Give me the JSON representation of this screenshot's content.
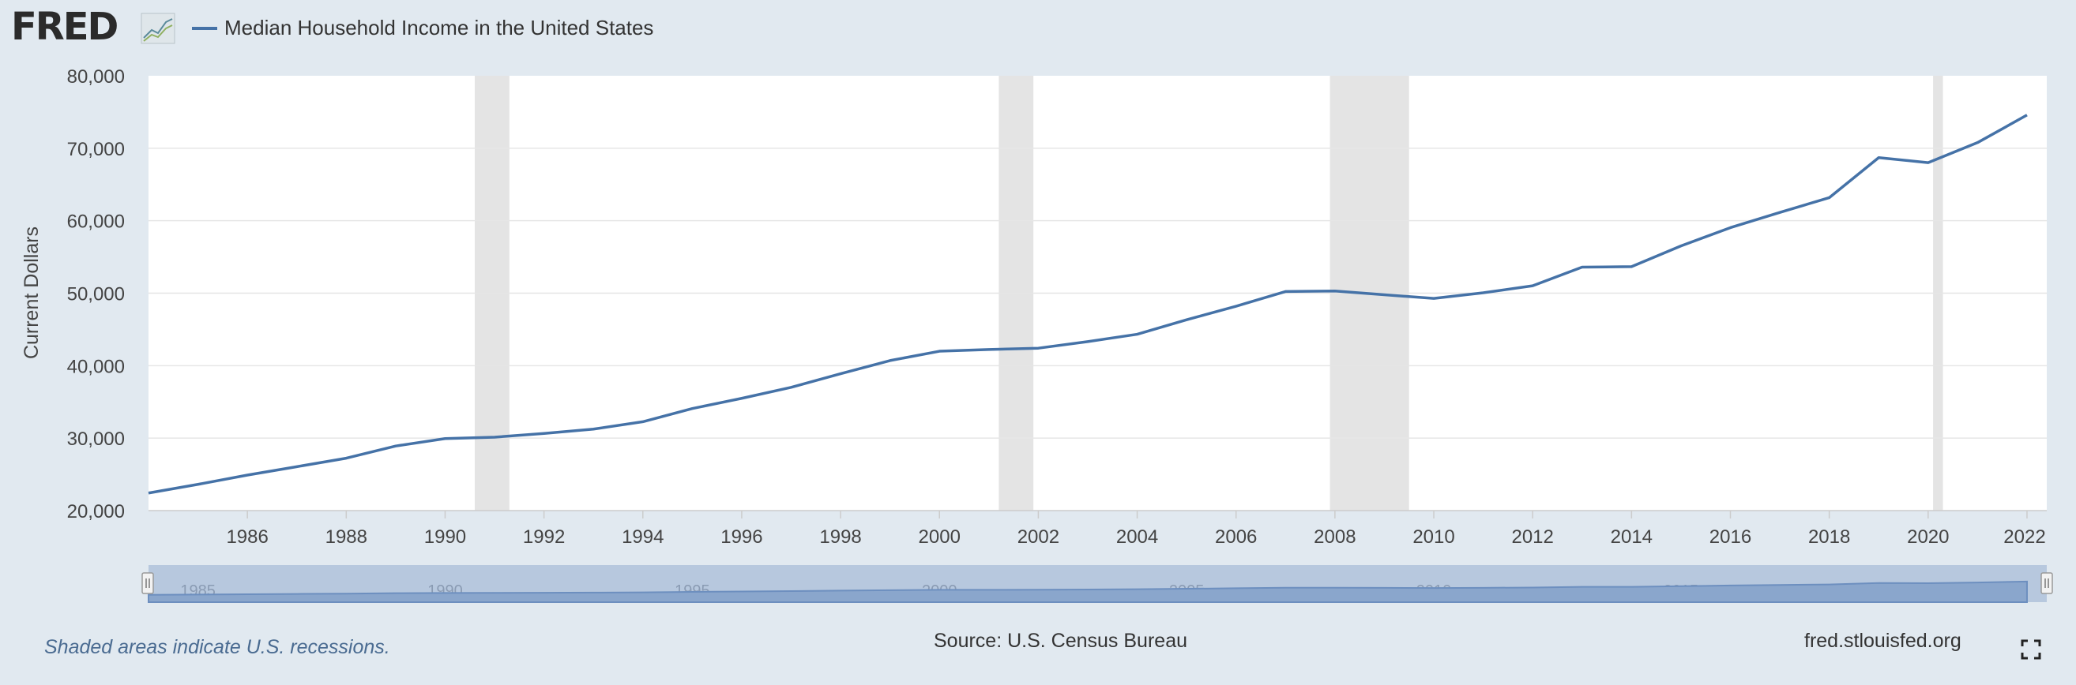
{
  "header": {
    "logo_text": "FRED",
    "series_title": "Median Household Income in the United States"
  },
  "footer": {
    "recession_note": "Shaded areas indicate U.S. recessions.",
    "source": "Source: U.S. Census Bureau",
    "site": "fred.stlouisfed.org"
  },
  "colors": {
    "line": "#4572a7",
    "recession": "#e4e4e4",
    "background": "#e1e9f0",
    "navigator_fill": "#8aa6cc",
    "navigator_bg": "#b7c8de"
  },
  "chart_data": {
    "type": "line",
    "title": "Median Household Income in the United States",
    "ylabel": "Current Dollars",
    "xlabel": "",
    "ylim": [
      20000,
      80000
    ],
    "xlim": [
      1984,
      2022.4
    ],
    "y_ticks": [
      20000,
      30000,
      40000,
      50000,
      60000,
      70000,
      80000
    ],
    "y_tick_labels": [
      "20,000",
      "30,000",
      "40,000",
      "50,000",
      "60,000",
      "70,000",
      "80,000"
    ],
    "x_ticks": [
      1986,
      1988,
      1990,
      1992,
      1994,
      1996,
      1998,
      2000,
      2002,
      2004,
      2006,
      2008,
      2010,
      2012,
      2014,
      2016,
      2018,
      2020,
      2022
    ],
    "x_tick_labels": [
      "1986",
      "1988",
      "1990",
      "1992",
      "1994",
      "1996",
      "1998",
      "2000",
      "2002",
      "2004",
      "2006",
      "2008",
      "2010",
      "2012",
      "2014",
      "2016",
      "2018",
      "2020",
      "2022"
    ],
    "grid": true,
    "legend": "top-left",
    "recessions": [
      [
        1990.6,
        1991.3
      ],
      [
        2001.2,
        2001.9
      ],
      [
        2007.9,
        2009.5
      ],
      [
        2020.1,
        2020.3
      ]
    ],
    "navigator_labels": [
      "1985",
      "1990",
      "1995",
      "2000",
      "2005",
      "2010",
      "2015",
      "2020"
    ],
    "series": [
      {
        "name": "Median Household Income in the United States",
        "x": [
          1984,
          1985,
          1986,
          1987,
          1988,
          1989,
          1990,
          1991,
          1992,
          1993,
          1994,
          1995,
          1996,
          1997,
          1998,
          1999,
          2000,
          2001,
          2002,
          2003,
          2004,
          2005,
          2006,
          2007,
          2008,
          2009,
          2010,
          2011,
          2012,
          2013,
          2014,
          2015,
          2016,
          2017,
          2018,
          2019,
          2020,
          2021,
          2022
        ],
        "values": [
          22420,
          23620,
          24900,
          26060,
          27230,
          28910,
          29940,
          30130,
          30640,
          31240,
          32260,
          34080,
          35490,
          37010,
          38890,
          40700,
          41990,
          42230,
          42410,
          43320,
          44330,
          46330,
          48200,
          50230,
          50300,
          49780,
          49280,
          50050,
          51020,
          53590,
          53660,
          56520,
          59040,
          61140,
          63180,
          68700,
          68010,
          70780,
          74580
        ]
      }
    ]
  }
}
